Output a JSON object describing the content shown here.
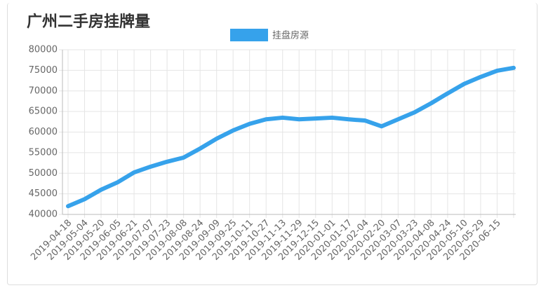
{
  "chart_data": {
    "type": "line",
    "title": "广州二手房挂牌量",
    "categories": [
      "2019-04-18",
      "2019-05-04",
      "2019-05-20",
      "2019-06-05",
      "2019-06-21",
      "2019-07-07",
      "2019-07-23",
      "2019-08-08",
      "2019-08-24",
      "2019-09-09",
      "2019-09-25",
      "2019-10-11",
      "2019-10-27",
      "2019-11-13",
      "2019-11-29",
      "2019-12-15",
      "2020-01-01",
      "2020-01-17",
      "2020-02-04",
      "2020-02-20",
      "2020-03-07",
      "2020-03-23",
      "2020-04-08",
      "2020-04-24",
      "2020-05-10",
      "2020-05-29",
      "2020-06-15",
      null
    ],
    "series": [
      {
        "name": "挂盘房源",
        "color": "#36a2eb",
        "values": [
          42000,
          43700,
          46000,
          47800,
          50200,
          51600,
          52800,
          53800,
          56000,
          58400,
          60400,
          62000,
          63100,
          63500,
          63100,
          63300,
          63500,
          63100,
          62800,
          61400,
          63100,
          64800,
          67000,
          69400,
          71700,
          73400,
          74900,
          75600
        ]
      }
    ],
    "ylim": [
      40000,
      80000
    ],
    "yticks": [
      40000,
      45000,
      50000,
      55000,
      60000,
      65000,
      70000,
      75000,
      80000
    ],
    "grid": true
  }
}
